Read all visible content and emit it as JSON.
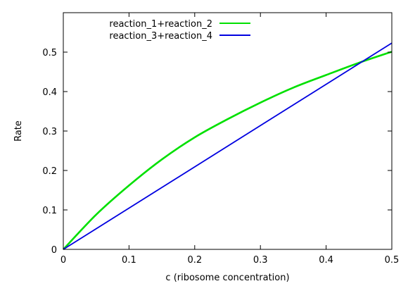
{
  "chart_data": {
    "type": "line",
    "title": "",
    "xlabel": "c (ribosome concentration)",
    "ylabel": "Rate",
    "xlim": [
      0,
      0.5
    ],
    "ylim": [
      0,
      0.6
    ],
    "x_ticks": [
      0,
      0.1,
      0.2,
      0.3,
      0.4,
      0.5
    ],
    "x_tick_labels": [
      "0",
      "0.1",
      "0.2",
      "0.3",
      "0.4",
      "0.5"
    ],
    "y_ticks": [
      0,
      0.1,
      0.2,
      0.3,
      0.4,
      0.5
    ],
    "y_tick_labels": [
      "0",
      "0.1",
      "0.2",
      "0.3",
      "0.4",
      "0.5"
    ],
    "grid": false,
    "legend_position": "top-left",
    "series": [
      {
        "name": "reaction_1+reaction_2",
        "color": "#00e000",
        "x": [
          0,
          0.05,
          0.1,
          0.15,
          0.2,
          0.25,
          0.3,
          0.35,
          0.4,
          0.45,
          0.5
        ],
        "y": [
          0,
          0.088,
          0.162,
          0.228,
          0.284,
          0.33,
          0.372,
          0.41,
          0.442,
          0.473,
          0.501
        ]
      },
      {
        "name": "reaction_3+reaction_4",
        "color": "#0000e0",
        "x": [
          0,
          0.5
        ],
        "y": [
          0,
          0.523
        ]
      }
    ]
  }
}
